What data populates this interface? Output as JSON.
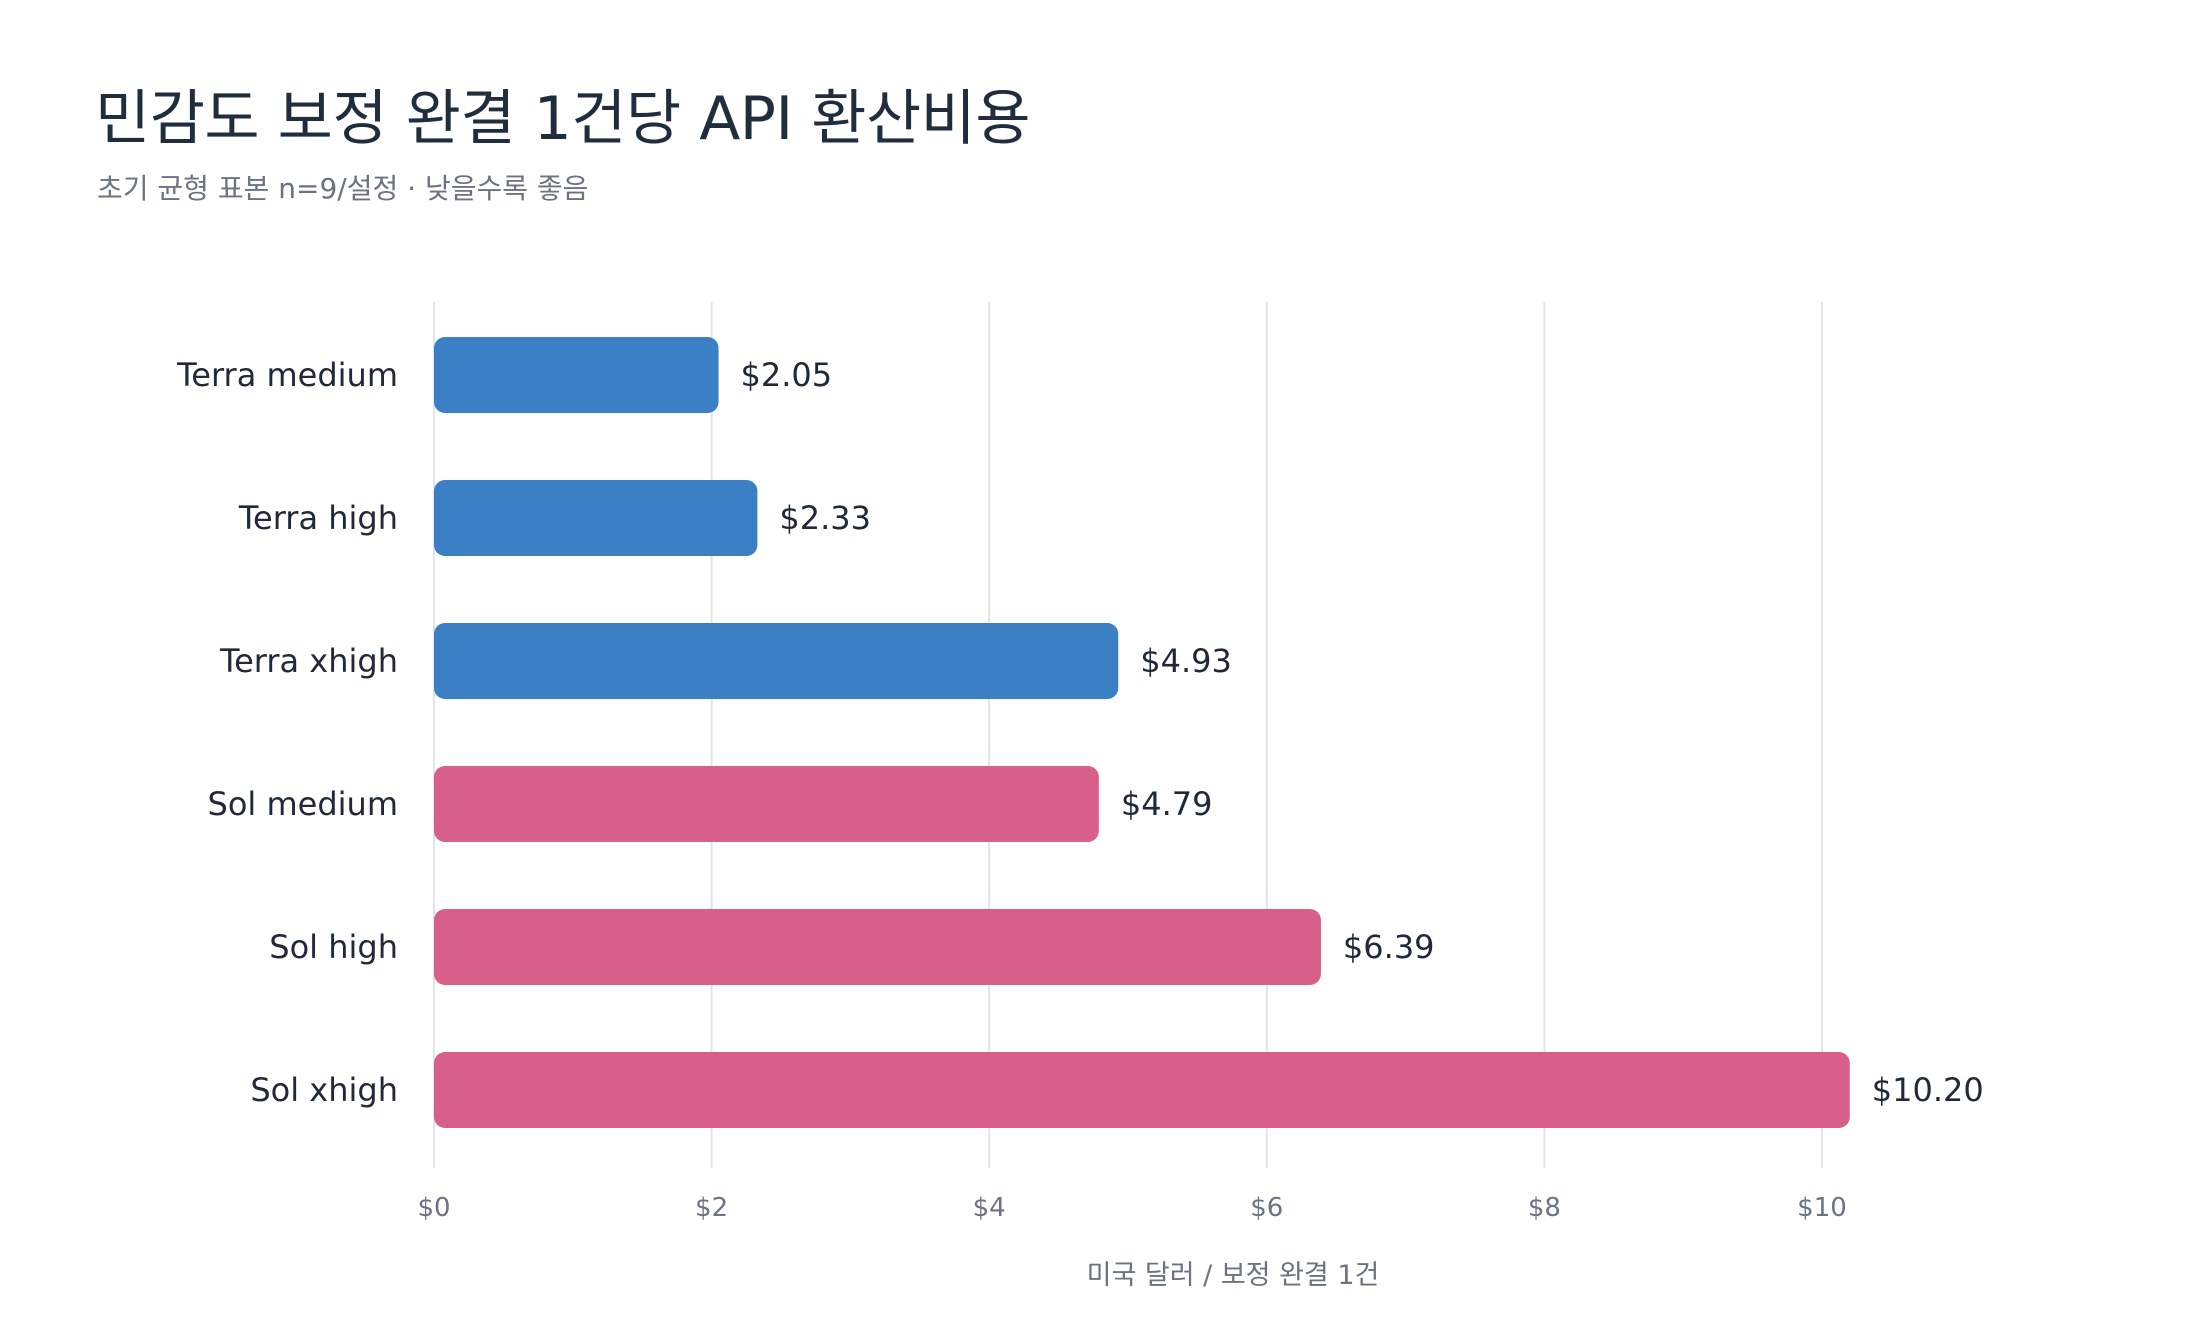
{
  "chart_data": {
    "type": "bar",
    "orientation": "horizontal",
    "title": "민감도 보정 완결 1건당 API 환산비용",
    "subtitle": "초기 균형 표본 n=9/설정 · 낮을수록 좋음",
    "xlabel": "미국 달러 / 보정 완결 1건",
    "ylabel": "",
    "xlim": [
      0,
      10.2
    ],
    "xticks": [
      {
        "value": 0,
        "label": "$0"
      },
      {
        "value": 2,
        "label": "$2"
      },
      {
        "value": 4,
        "label": "$4"
      },
      {
        "value": 6,
        "label": "$6"
      },
      {
        "value": 8,
        "label": "$8"
      },
      {
        "value": 10,
        "label": "$10"
      }
    ],
    "grid": "vertical",
    "categories": [
      "Terra medium",
      "Terra high",
      "Terra xhigh",
      "Sol medium",
      "Sol high",
      "Sol xhigh"
    ],
    "values": [
      2.05,
      2.33,
      4.93,
      4.79,
      6.39,
      10.2
    ],
    "value_labels": [
      "$2.05",
      "$2.33",
      "$4.93",
      "$4.79",
      "$6.39",
      "$10.20"
    ],
    "bar_colors": [
      "#3b7fc4",
      "#3b7fc4",
      "#3b7fc4",
      "#d75f89",
      "#d75f89",
      "#d75f89"
    ],
    "gridline_color": "#e1e4e8"
  }
}
